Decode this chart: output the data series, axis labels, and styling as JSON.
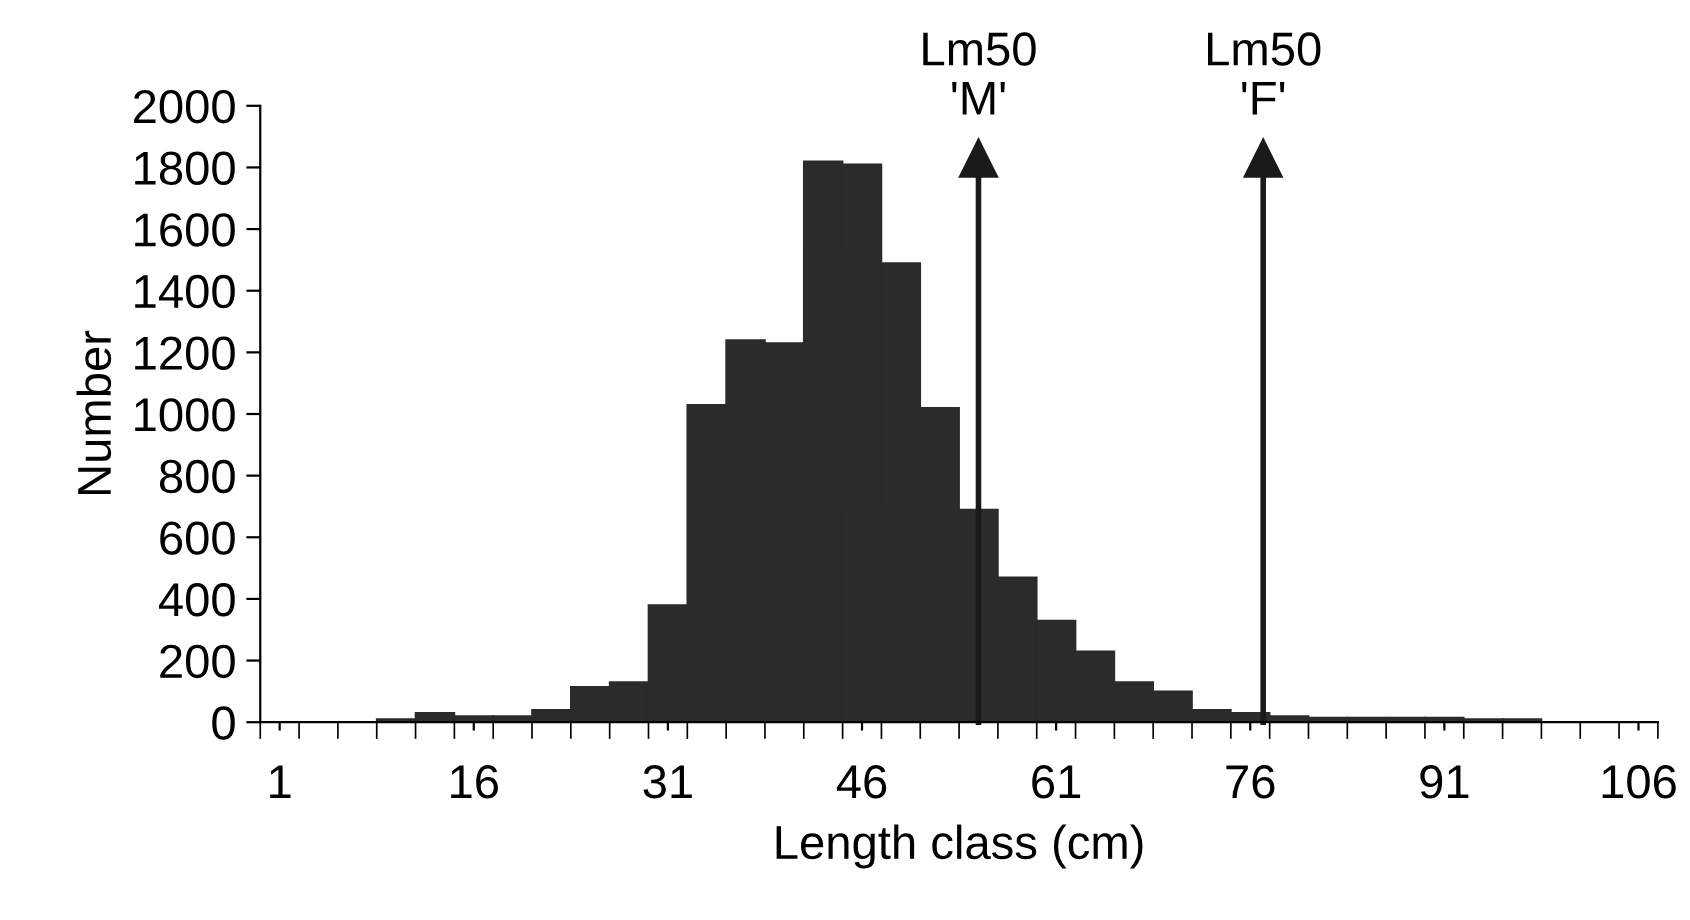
{
  "chart_data": {
    "type": "bar",
    "xlabel": "Length class (cm)",
    "ylabel": "Number",
    "x": [
      10,
      13,
      16,
      19,
      22,
      25,
      28,
      31,
      34,
      37,
      40,
      43,
      46,
      49,
      52,
      55,
      58,
      61,
      64,
      67,
      70,
      73,
      76,
      79,
      82,
      85,
      88,
      91,
      94,
      97
    ],
    "values": [
      10,
      30,
      20,
      20,
      40,
      115,
      130,
      380,
      1030,
      1240,
      1230,
      1820,
      1810,
      1490,
      1020,
      690,
      470,
      330,
      230,
      130,
      100,
      40,
      30,
      20,
      15,
      15,
      15,
      15,
      10,
      10
    ],
    "color": "#2b2b2b",
    "xlim": [
      -0.5,
      107.5
    ],
    "xticks": [
      1,
      16,
      31,
      46,
      61,
      76,
      91,
      106
    ],
    "ylim": [
      0,
      2000
    ],
    "yticks": [
      0,
      200,
      400,
      600,
      800,
      1000,
      1200,
      1400,
      1600,
      1800,
      2000
    ],
    "ref_lines": [
      {
        "axis": "x",
        "value": 55,
        "label": "Lm50\n'M'",
        "color": "#1a1a1a"
      },
      {
        "axis": "x",
        "value": 77,
        "label": "Lm50\n'F'",
        "color": "#1a1a1a"
      }
    ]
  }
}
